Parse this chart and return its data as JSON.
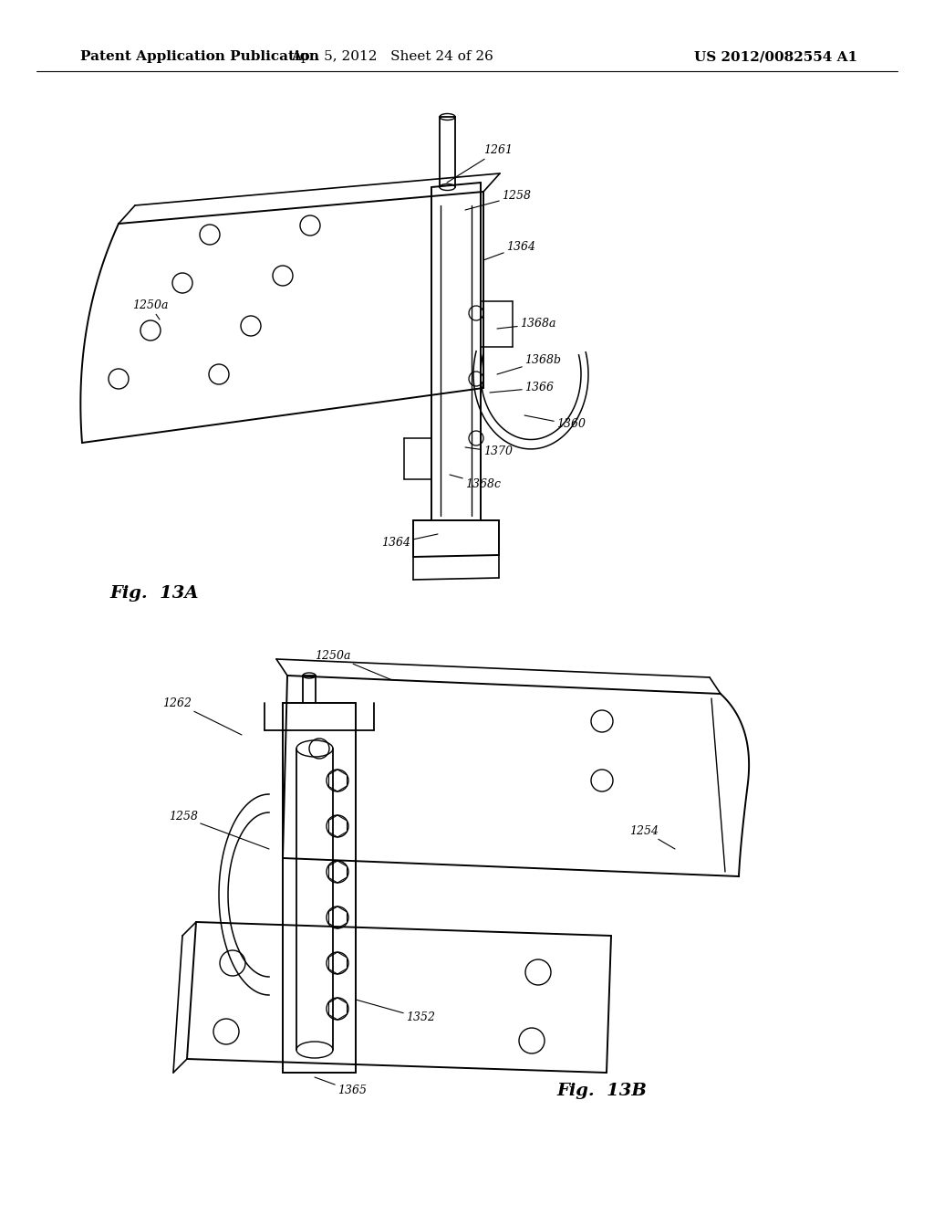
{
  "background_color": "#ffffff",
  "header_left": "Patent Application Publication",
  "header_center": "Apr. 5, 2012   Sheet 24 of 26",
  "header_right": "US 2012/0082554 A1",
  "annotation_fontsize": 9.0,
  "fig13a_label": "Fig.  13A",
  "fig13b_label": "Fig.  13B"
}
